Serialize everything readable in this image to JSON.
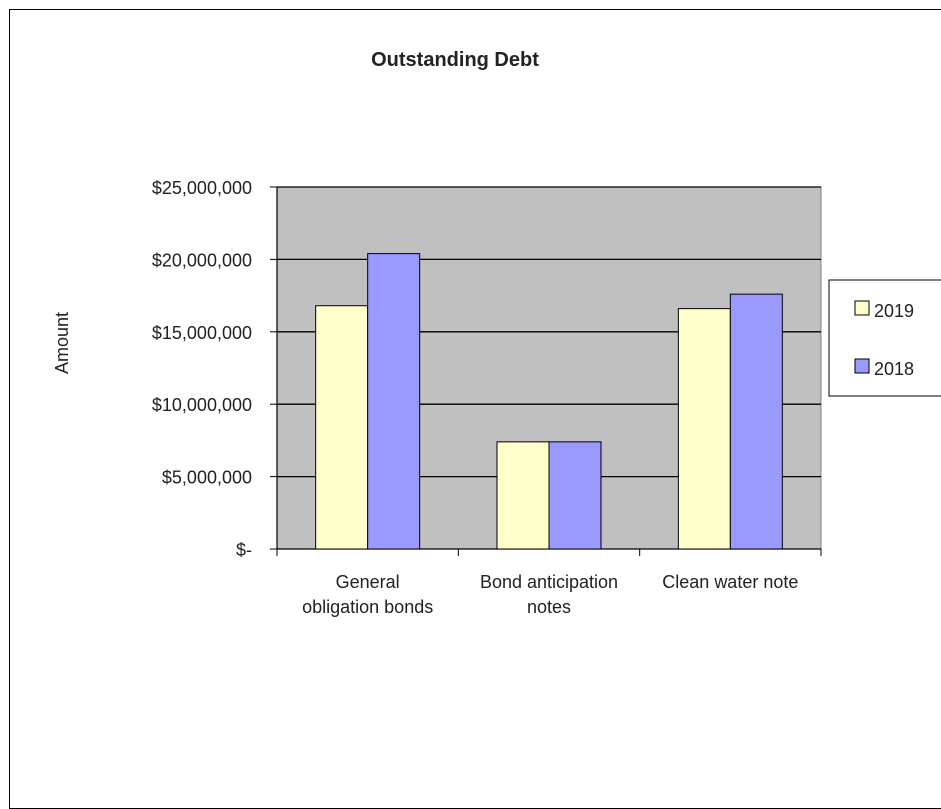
{
  "chart_data": {
    "type": "bar",
    "title": "Outstanding Debt",
    "xlabel": "",
    "ylabel": "Amount",
    "categories": [
      [
        "General",
        "obligation bonds"
      ],
      [
        "Bond anticipation",
        "notes"
      ],
      [
        "Clean water note"
      ]
    ],
    "series": [
      {
        "name": "2019",
        "values": [
          16800000,
          7400000,
          16600000
        ],
        "color": "#ffffcc"
      },
      {
        "name": "2018",
        "values": [
          20400000,
          7400000,
          17600000
        ],
        "color": "#9999ff"
      }
    ],
    "ylim": [
      0,
      25000000
    ],
    "yticks": [
      {
        "value": 0,
        "label": "$-"
      },
      {
        "value": 5000000,
        "label": "$5,000,000"
      },
      {
        "value": 10000000,
        "label": "$10,000,000"
      },
      {
        "value": 15000000,
        "label": "$15,000,000"
      },
      {
        "value": 20000000,
        "label": "$20,000,000"
      },
      {
        "value": 25000000,
        "label": "$25,000,000"
      }
    ],
    "grid": true,
    "plot_background": "#c0c0c0",
    "legend": "right"
  }
}
